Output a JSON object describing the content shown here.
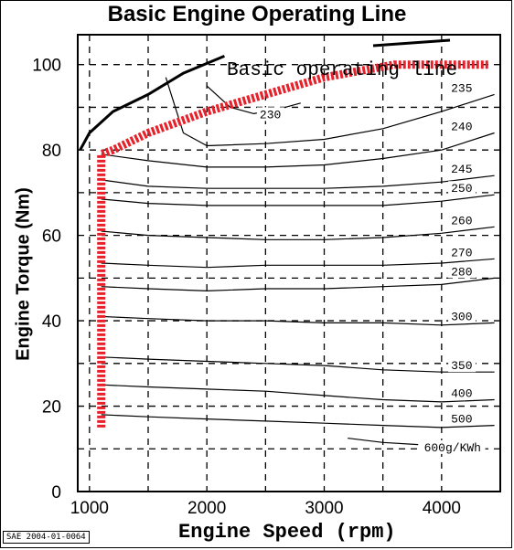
{
  "chart_data": {
    "type": "line",
    "title": "Basic Engine Operating Line",
    "xlabel": "Engine Speed (rpm)",
    "ylabel": "Engine Torque (Nm)",
    "xlim": [
      900,
      4500
    ],
    "ylim": [
      0,
      107
    ],
    "x_ticks": [
      "1000",
      "2000",
      "3000",
      "4000"
    ],
    "y_ticks": [
      "0",
      "20",
      "40",
      "60",
      "80",
      "100"
    ],
    "grid": "dashed",
    "annotation": "Basic operating line",
    "source": "SAE 2004-01-0064",
    "operating_line": {
      "color": "#e8202a",
      "points": [
        [
          1100,
          15
        ],
        [
          1100,
          79
        ],
        [
          1200,
          80
        ],
        [
          1500,
          84
        ],
        [
          2000,
          89
        ],
        [
          2500,
          93
        ],
        [
          3000,
          97
        ],
        [
          3600,
          100
        ],
        [
          4400,
          100
        ]
      ]
    },
    "max_torque_line": {
      "color": "#000000",
      "points": [
        [
          920,
          80
        ],
        [
          1000,
          84
        ],
        [
          1200,
          89
        ],
        [
          1500,
          93
        ],
        [
          1800,
          98
        ],
        [
          2150,
          102
        ]
      ]
    },
    "contours": [
      {
        "label": "230",
        "points": [
          [
            2000,
            95
          ],
          [
            2200,
            90
          ],
          [
            2400,
            88.5
          ],
          [
            2600,
            89.5
          ],
          [
            2800,
            91
          ]
        ]
      },
      {
        "label": "235",
        "points": [
          [
            1650,
            97
          ],
          [
            1800,
            84
          ],
          [
            2000,
            81
          ],
          [
            2500,
            81.5
          ],
          [
            3000,
            82.5
          ],
          [
            3500,
            85
          ],
          [
            4000,
            89
          ],
          [
            4450,
            93
          ]
        ]
      },
      {
        "label": "240",
        "points": [
          [
            1100,
            79
          ],
          [
            1500,
            77.5
          ],
          [
            2000,
            76
          ],
          [
            2500,
            76
          ],
          [
            3000,
            76.5
          ],
          [
            3500,
            78
          ],
          [
            4000,
            80
          ],
          [
            4450,
            84
          ]
        ]
      },
      {
        "label": "245",
        "points": [
          [
            1100,
            73
          ],
          [
            1500,
            71.5
          ],
          [
            2000,
            71
          ],
          [
            2500,
            71
          ],
          [
            3000,
            71
          ],
          [
            3500,
            71.5
          ],
          [
            4000,
            72.5
          ],
          [
            4450,
            74
          ]
        ]
      },
      {
        "label": "250",
        "points": [
          [
            1100,
            68.5
          ],
          [
            1500,
            67.5
          ],
          [
            2000,
            67
          ],
          [
            2500,
            67
          ],
          [
            3000,
            67
          ],
          [
            3500,
            67
          ],
          [
            4000,
            68
          ],
          [
            4450,
            69.5
          ]
        ]
      },
      {
        "label": "260",
        "points": [
          [
            1100,
            61
          ],
          [
            1500,
            60
          ],
          [
            2000,
            59.5
          ],
          [
            2500,
            59
          ],
          [
            3000,
            59
          ],
          [
            3500,
            59.5
          ],
          [
            4000,
            60.5
          ],
          [
            4450,
            62
          ]
        ]
      },
      {
        "label": "270",
        "points": [
          [
            1100,
            53.5
          ],
          [
            1500,
            53
          ],
          [
            2000,
            52.5
          ],
          [
            2500,
            53
          ],
          [
            3000,
            53
          ],
          [
            3500,
            53
          ],
          [
            4000,
            53.5
          ],
          [
            4450,
            54.5
          ]
        ]
      },
      {
        "label": "280",
        "points": [
          [
            1100,
            48
          ],
          [
            1500,
            47.5
          ],
          [
            2000,
            47
          ],
          [
            2500,
            47.5
          ],
          [
            3000,
            47.5
          ],
          [
            3500,
            48
          ],
          [
            4000,
            48.5
          ],
          [
            4450,
            50
          ]
        ]
      },
      {
        "label": "300",
        "points": [
          [
            1100,
            41
          ],
          [
            1500,
            40.5
          ],
          [
            2000,
            40
          ],
          [
            2500,
            40
          ],
          [
            3000,
            39.5
          ],
          [
            3500,
            39.5
          ],
          [
            4000,
            39
          ],
          [
            4450,
            39.5
          ]
        ]
      },
      {
        "label": "350",
        "points": [
          [
            1100,
            31.5
          ],
          [
            1500,
            31
          ],
          [
            2000,
            30.5
          ],
          [
            2500,
            30
          ],
          [
            3000,
            29.5
          ],
          [
            3500,
            28.5
          ],
          [
            4000,
            28
          ],
          [
            4450,
            28
          ]
        ]
      },
      {
        "label": "400",
        "points": [
          [
            1100,
            25
          ],
          [
            1500,
            24.5
          ],
          [
            2000,
            24
          ],
          [
            2500,
            23.5
          ],
          [
            3000,
            22.5
          ],
          [
            3500,
            21.5
          ],
          [
            4000,
            21
          ],
          [
            4450,
            21.5
          ]
        ]
      },
      {
        "label": "500",
        "points": [
          [
            1100,
            18
          ],
          [
            1500,
            17.5
          ],
          [
            2000,
            17
          ],
          [
            2500,
            16.5
          ],
          [
            3000,
            16
          ],
          [
            3500,
            15.5
          ],
          [
            4000,
            15
          ],
          [
            4450,
            15.5
          ]
        ]
      },
      {
        "label": "600g/KWh",
        "points": [
          [
            3200,
            12.5
          ],
          [
            3500,
            11.5
          ],
          [
            3800,
            11
          ]
        ]
      }
    ]
  }
}
